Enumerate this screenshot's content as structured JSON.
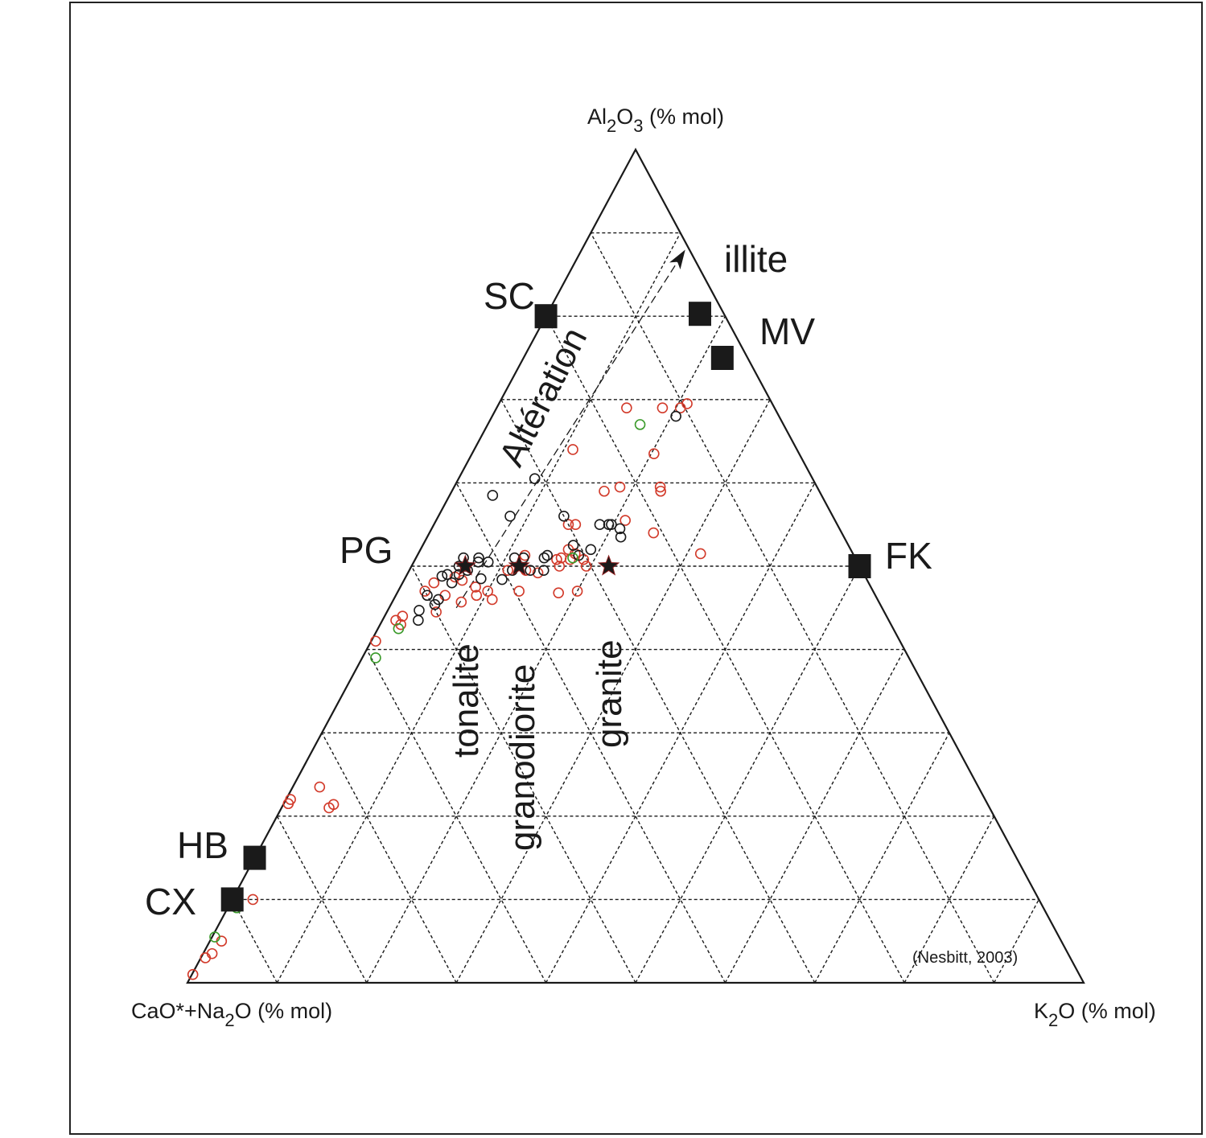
{
  "chart_data": {
    "type": "scatter",
    "diagram": "ternary",
    "vertices": {
      "top": "Al2O3 (% mol)",
      "left": "CaO*+Na2O (% mol)",
      "right": "K2O (% mol)"
    },
    "labels": {
      "top_main": "Al",
      "top_sub1": "2",
      "top_mid": "O",
      "top_sub2": "3",
      "top_unit": " (% mol)",
      "left_main": "CaO*+Na",
      "left_sub": "2",
      "left_mid": "O",
      "left_unit": " (% mol)",
      "right_main": "K",
      "right_sub": "2",
      "right_mid": "O",
      "right_unit": " (% mol)"
    },
    "grid": {
      "step": 10,
      "style": "dashed"
    },
    "source_note": "(Nesbitt, 2003)",
    "arrow_label": "Altération",
    "minerals": [
      {
        "name": "SC",
        "al": 80,
        "k": 0
      },
      {
        "name": "illite",
        "al": 80,
        "k": 17
      },
      {
        "name": "MV",
        "al": 75,
        "k": 22
      },
      {
        "name": "PG",
        "al": 50,
        "k": 0
      },
      {
        "name": "FK",
        "al": 50,
        "k": 50
      },
      {
        "name": "HB",
        "al": 15,
        "k": 0
      },
      {
        "name": "CX",
        "al": 10,
        "k": 0
      }
    ],
    "rock_types": [
      {
        "name": "tonalite",
        "al": 50,
        "k": 6
      },
      {
        "name": "granodiorite",
        "al": 50,
        "k": 12
      },
      {
        "name": "granite",
        "al": 50,
        "k": 22
      }
    ],
    "series": [
      {
        "color": "#d23a2a",
        "points": [
          [
            69.0,
            14.5
          ],
          [
            69.0,
            18.5
          ],
          [
            69.0,
            20.5
          ],
          [
            69.5,
            21.0
          ],
          [
            64.0,
            11.0
          ],
          [
            63.5,
            20.3
          ],
          [
            59.5,
            18.5
          ],
          [
            59.0,
            17.0
          ],
          [
            59.0,
            23.3
          ],
          [
            59.5,
            23.0
          ],
          [
            55.0,
            15.0
          ],
          [
            55.0,
            15.8
          ],
          [
            55.5,
            21.1
          ],
          [
            54.0,
            25.0
          ],
          [
            51.5,
            31.5
          ],
          [
            52.0,
            16.5
          ],
          [
            51.5,
            17.5
          ],
          [
            51.0,
            16.2
          ],
          [
            51.3,
            12.0
          ],
          [
            50.8,
            15.8
          ],
          [
            50.8,
            17.3
          ],
          [
            50.8,
            18.8
          ],
          [
            50.0,
            16.5
          ],
          [
            50.0,
            19.5
          ],
          [
            49.5,
            13.0
          ],
          [
            49.2,
            14.5
          ],
          [
            49.5,
            11.0
          ],
          [
            48.7,
            5.5
          ],
          [
            48.3,
            6.5
          ],
          [
            48.0,
            3.5
          ],
          [
            47.0,
            3.0
          ],
          [
            47.0,
            10.0
          ],
          [
            47.0,
            13.5
          ],
          [
            47.0,
            20.0
          ],
          [
            46.8,
            18.0
          ],
          [
            47.5,
            8.4
          ],
          [
            46.5,
            9.0
          ],
          [
            46.0,
            11.0
          ],
          [
            46.5,
            5.5
          ],
          [
            45.7,
            7.7
          ],
          [
            44.5,
            5.5
          ],
          [
            44.0,
            2.0
          ],
          [
            43.5,
            1.5
          ],
          [
            43.0,
            2.3
          ],
          [
            41.0,
            0.5
          ],
          [
            23.5,
            3.0
          ],
          [
            22.0,
            0.5
          ],
          [
            21.5,
            0.5
          ],
          [
            21.0,
            5.3
          ],
          [
            21.4,
            5.6
          ],
          [
            10.0,
            2.3
          ],
          [
            5.0,
            1.3
          ],
          [
            3.5,
            1.0
          ],
          [
            3.0,
            0.5
          ],
          [
            1.0,
            0.1
          ]
        ]
      },
      {
        "color": "#1a1a1a",
        "points": [
          [
            68.0,
            20.5
          ],
          [
            60.5,
            8.5
          ],
          [
            58.5,
            4.8
          ],
          [
            56.0,
            8.0
          ],
          [
            56.0,
            14.0
          ],
          [
            55.0,
            18.5
          ],
          [
            55.0,
            19.5
          ],
          [
            55.0,
            19.8
          ],
          [
            54.5,
            21.0
          ],
          [
            53.5,
            21.6
          ],
          [
            52.5,
            16.8
          ],
          [
            52.0,
            19.0
          ],
          [
            51.3,
            14.5
          ],
          [
            51.3,
            18.0
          ],
          [
            51.0,
            5.3
          ],
          [
            51.0,
            7.0
          ],
          [
            51.0,
            11.0
          ],
          [
            51.0,
            12.0
          ],
          [
            50.5,
            7.2
          ],
          [
            50.5,
            8.3
          ],
          [
            50.0,
            5.3
          ],
          [
            50.0,
            6.0
          ],
          [
            49.5,
            6.5
          ],
          [
            49.5,
            11.5
          ],
          [
            49.5,
            13.5
          ],
          [
            49.5,
            15.0
          ],
          [
            49.0,
            4.5
          ],
          [
            49.0,
            5.8
          ],
          [
            48.8,
            4.0
          ],
          [
            48.4,
            10.9
          ],
          [
            48.0,
            5.5
          ],
          [
            48.5,
            8.5
          ],
          [
            46.5,
            3.5
          ],
          [
            46.0,
            5.0
          ],
          [
            44.7,
            3.5
          ],
          [
            45.4,
            4.9
          ],
          [
            43.5,
            4.0
          ],
          [
            51.0,
            14.3
          ]
        ]
      },
      {
        "color": "#3a9a2a",
        "points": [
          [
            67.0,
            17.0
          ],
          [
            51.0,
            17.5
          ],
          [
            42.5,
            2.3
          ],
          [
            39.0,
            1.5
          ],
          [
            9.0,
            1.0
          ],
          [
            5.5,
            0.3
          ]
        ]
      }
    ]
  }
}
